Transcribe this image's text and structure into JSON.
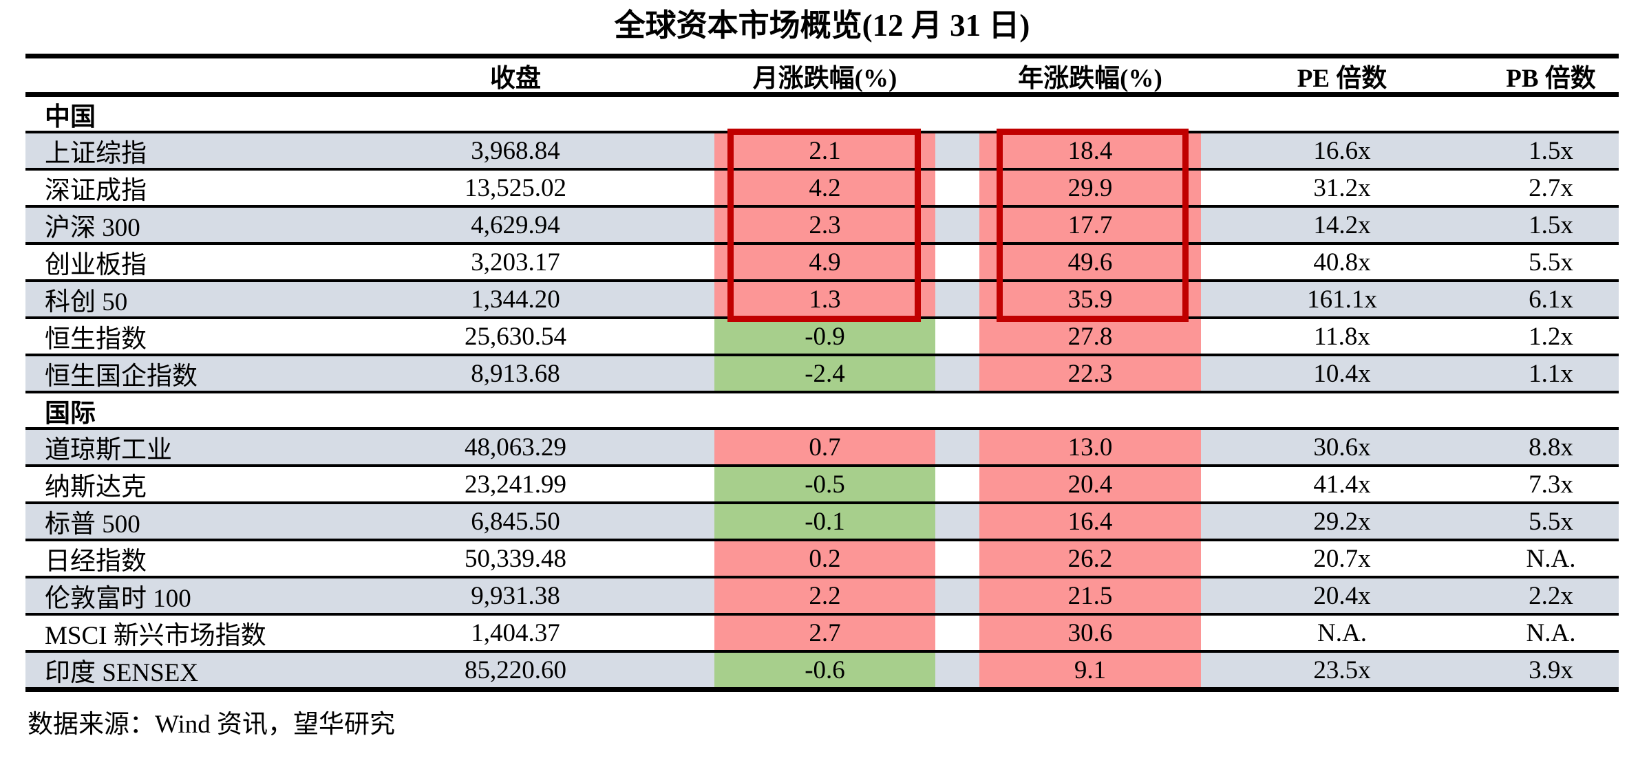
{
  "title": "全球资本市场概览(12 月 31 日)",
  "columns": {
    "name": "",
    "close": "收盘",
    "month": "月涨跌幅(%)",
    "year": "年涨跌幅(%)",
    "pe": "PE 倍数",
    "pb": "PB 倍数"
  },
  "sections": [
    {
      "label": "中国",
      "rows": [
        {
          "name": "上证综指",
          "close": "3,968.84",
          "month": "2.1",
          "year": "18.4",
          "pe": "16.6x",
          "pb": "1.5x"
        },
        {
          "name": "深证成指",
          "close": "13,525.02",
          "month": "4.2",
          "year": "29.9",
          "pe": "31.2x",
          "pb": "2.7x"
        },
        {
          "name": "沪深 300",
          "close": "4,629.94",
          "month": "2.3",
          "year": "17.7",
          "pe": "14.2x",
          "pb": "1.5x"
        },
        {
          "name": "创业板指",
          "close": "3,203.17",
          "month": "4.9",
          "year": "49.6",
          "pe": "40.8x",
          "pb": "5.5x"
        },
        {
          "name": "科创 50",
          "close": "1,344.20",
          "month": "1.3",
          "year": "35.9",
          "pe": "161.1x",
          "pb": "6.1x"
        },
        {
          "name": "恒生指数",
          "close": "25,630.54",
          "month": "-0.9",
          "year": "27.8",
          "pe": "11.8x",
          "pb": "1.2x"
        },
        {
          "name": "恒生国企指数",
          "close": "8,913.68",
          "month": "-2.4",
          "year": "22.3",
          "pe": "10.4x",
          "pb": "1.1x"
        }
      ]
    },
    {
      "label": "国际",
      "rows": [
        {
          "name": "道琼斯工业",
          "close": "48,063.29",
          "month": "0.7",
          "year": "13.0",
          "pe": "30.6x",
          "pb": "8.8x"
        },
        {
          "name": "纳斯达克",
          "close": "23,241.99",
          "month": "-0.5",
          "year": "20.4",
          "pe": "41.4x",
          "pb": "7.3x"
        },
        {
          "name": "标普 500",
          "close": "6,845.50",
          "month": "-0.1",
          "year": "16.4",
          "pe": "29.2x",
          "pb": "5.5x"
        },
        {
          "name": "日经指数",
          "close": "50,339.48",
          "month": "0.2",
          "year": "26.2",
          "pe": "20.7x",
          "pb": "N.A."
        },
        {
          "name": "伦敦富时 100",
          "close": "9,931.38",
          "month": "2.2",
          "year": "21.5",
          "pe": "20.4x",
          "pb": "2.2x"
        },
        {
          "name": "MSCI 新兴市场指数",
          "close": "1,404.37",
          "month": "2.7",
          "year": "30.6",
          "pe": "N.A.",
          "pb": "N.A."
        },
        {
          "name": "印度 SENSEX",
          "close": "85,220.60",
          "month": "-0.6",
          "year": "9.1",
          "pe": "23.5x",
          "pb": "3.9x"
        }
      ]
    }
  ],
  "footer": "数据来源：Wind 资讯，望华研究",
  "colors": {
    "positive_cell": "#FC9696",
    "negative_cell": "#A7CF8C",
    "row_stripe": "#D6DCE5",
    "highlight_border": "#C00000"
  }
}
